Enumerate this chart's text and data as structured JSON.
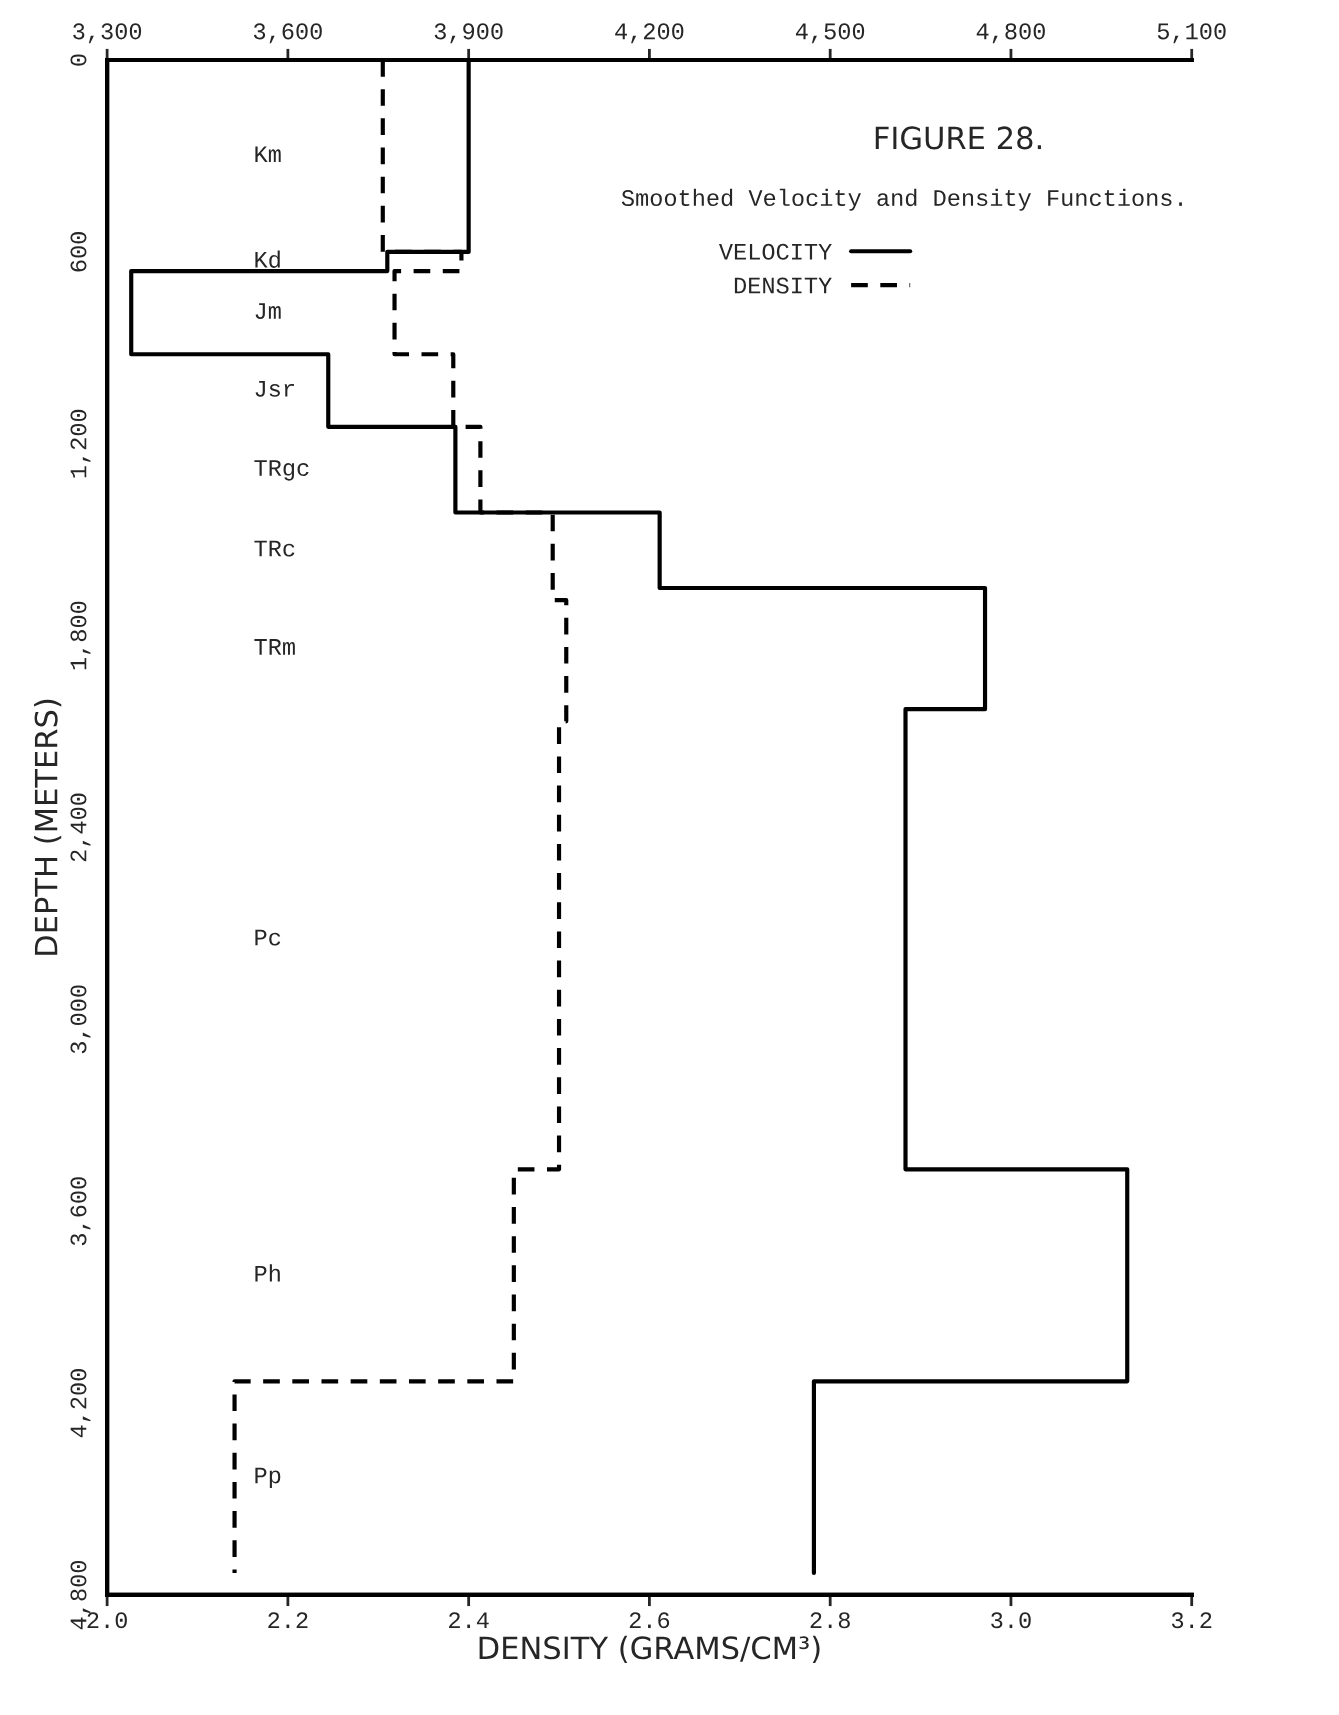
{
  "chart_data": {
    "type": "step",
    "orientation": "horizontal",
    "title": "FIGURE 28.",
    "subtitle": "Smoothed Velocity and Density Functions.",
    "xlabel": "DENSITY (GRAMS/CM³)",
    "ylabel": "DEPTH (METERS)",
    "xlim": [
      2.0,
      3.2
    ],
    "xticks": [
      {
        "value": 2.0,
        "label": "2.0"
      },
      2.2,
      2.4,
      2.6,
      2.8,
      {
        "value": 3.0,
        "label": "3.0"
      },
      3.2
    ],
    "x2lim": [
      3300,
      5100
    ],
    "x2ticks": [
      {
        "value": 3300,
        "label": "3,300"
      },
      {
        "value": 3600,
        "label": "3,600"
      },
      {
        "value": 3900,
        "label": "3,900"
      },
      {
        "value": 4200,
        "label": "4,200"
      },
      {
        "value": 4500,
        "label": "4,500"
      },
      {
        "value": 4800,
        "label": "4,800"
      },
      {
        "value": 5100,
        "label": "5,100"
      }
    ],
    "ylim": [
      4800,
      0
    ],
    "yticks": [
      0,
      600,
      {
        "value": 1200,
        "label": "1,200"
      },
      {
        "value": 1800,
        "label": "1,800"
      },
      {
        "value": 2400,
        "label": "2,400"
      },
      {
        "value": 3000,
        "label": "3,000"
      },
      {
        "value": 3600,
        "label": "3,600"
      },
      {
        "value": 4200,
        "label": "4,200"
      },
      {
        "value": 4800,
        "label": "4,800"
      }
    ],
    "series": [
      {
        "name": "VELOCITY",
        "color": "#000000",
        "line_style": "solid",
        "axis": "x2",
        "x": [
          0,
          600,
          660,
          920,
          1147,
          1415,
          1651,
          2030,
          3469,
          4132,
          4731
        ],
        "values": [
          3900,
          3765,
          3340,
          3667,
          3878,
          4217,
          4757,
          4625,
          4993,
          4473,
          4473
        ]
      },
      {
        "name": "DENSITY",
        "color": "#000000",
        "line_style": "dashed",
        "x": [
          0,
          600,
          660,
          920,
          1147,
          1415,
          1689,
          2068,
          3469,
          4132,
          4731
        ],
        "values": [
          2.305,
          2.392,
          2.318,
          2.383,
          2.413,
          2.493,
          2.508,
          2.5,
          2.45,
          2.141,
          2.141
        ]
      }
    ],
    "legend": "top right",
    "grid": false,
    "annotations": [
      "Km",
      "Kd",
      "Jm",
      "Jsr",
      "TRgc",
      "TRc",
      "TRm",
      "Pc",
      "Ph",
      "Pp"
    ]
  }
}
